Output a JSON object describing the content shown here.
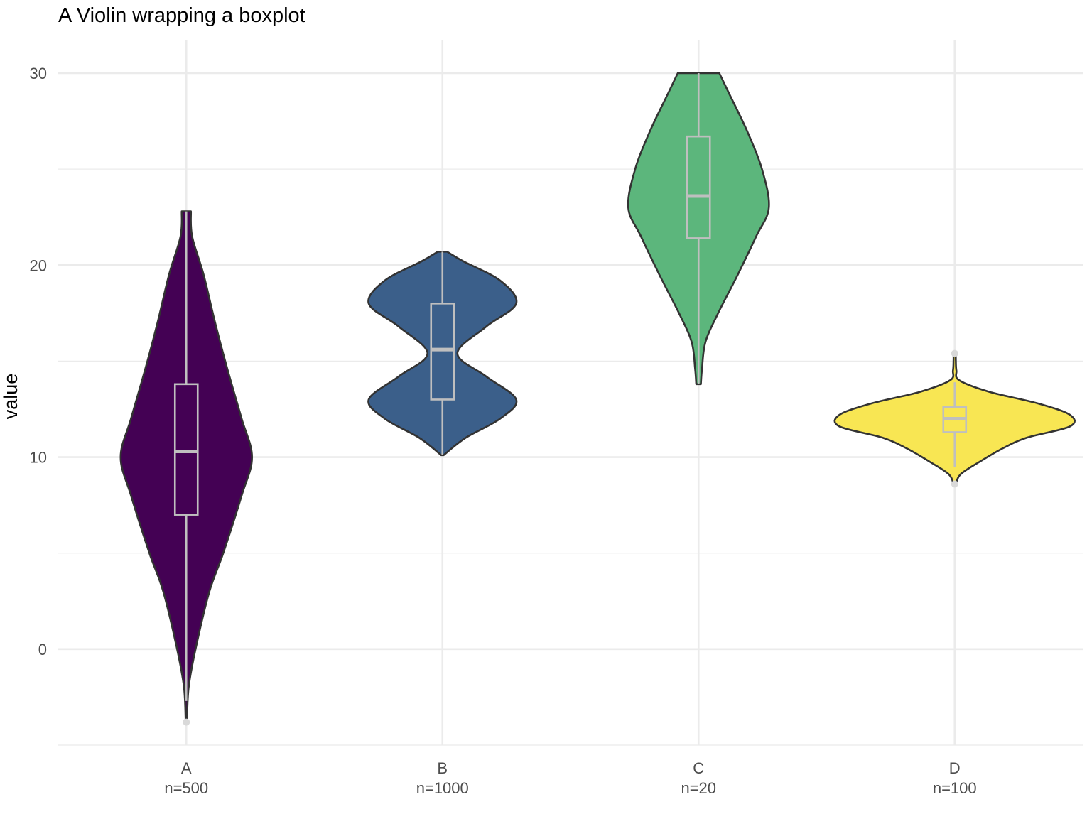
{
  "chart_data": {
    "type": "violin",
    "title": "A Violin wrapping a boxplot",
    "xlabel": "",
    "ylabel": "value",
    "ylim": [
      -5,
      31.7
    ],
    "y_ticks": [
      0,
      10,
      20,
      30
    ],
    "grid": true,
    "legend": "none",
    "categories": [
      "A",
      "B",
      "C",
      "D"
    ],
    "category_labels": [
      "n=500",
      "n=1000",
      "n=20",
      "n=100"
    ],
    "colors": [
      "#440154",
      "#3b5f8a",
      "#5cb67c",
      "#f8e653"
    ],
    "series": [
      {
        "category": "A",
        "n": 500,
        "box": {
          "q1": 7.0,
          "median": 10.3,
          "q3": 13.8,
          "whisker_low": -2.7,
          "whisker_high": 22.8
        },
        "outliers": [
          -3.8
        ],
        "violin_range": [
          -3.8,
          22.8
        ],
        "density": [
          [
            -3.8,
            0.005
          ],
          [
            -2.0,
            0.02
          ],
          [
            0,
            0.08
          ],
          [
            3.0,
            0.2
          ],
          [
            5.0,
            0.32
          ],
          [
            8.0,
            0.48
          ],
          [
            10.0,
            0.57
          ],
          [
            12.0,
            0.48
          ],
          [
            14.5,
            0.36
          ],
          [
            17.0,
            0.25
          ],
          [
            19.5,
            0.15
          ],
          [
            21.5,
            0.05
          ],
          [
            22.8,
            0.04
          ]
        ]
      },
      {
        "category": "B",
        "n": 1000,
        "box": {
          "q1": 13.0,
          "median": 15.6,
          "q3": 18.0,
          "whisker_low": 10.1,
          "whisker_high": 20.7
        },
        "outliers": [],
        "violin_range": [
          10.1,
          20.7
        ],
        "density": [
          [
            10.1,
            0.01
          ],
          [
            11.0,
            0.2
          ],
          [
            12.0,
            0.5
          ],
          [
            13.0,
            0.64
          ],
          [
            14.2,
            0.38
          ],
          [
            15.4,
            0.13
          ],
          [
            16.8,
            0.38
          ],
          [
            18.0,
            0.64
          ],
          [
            19.2,
            0.5
          ],
          [
            20.2,
            0.18
          ],
          [
            20.7,
            0.04
          ]
        ]
      },
      {
        "category": "C",
        "n": 20,
        "box": {
          "q1": 21.4,
          "median": 23.6,
          "q3": 26.7,
          "whisker_low": 13.8,
          "whisker_high": 30.0
        },
        "outliers": [],
        "violin_range": [
          13.8,
          30.0
        ],
        "density": [
          [
            13.8,
            0.02
          ],
          [
            14.6,
            0.03
          ],
          [
            16.0,
            0.06
          ],
          [
            17.5,
            0.17
          ],
          [
            19.5,
            0.34
          ],
          [
            21.5,
            0.5
          ],
          [
            23.0,
            0.61
          ],
          [
            25.0,
            0.55
          ],
          [
            27.0,
            0.42
          ],
          [
            29.0,
            0.26
          ],
          [
            30.0,
            0.18
          ]
        ]
      },
      {
        "category": "D",
        "n": 100,
        "box": {
          "q1": 11.3,
          "median": 12.0,
          "q3": 12.6,
          "whisker_low": 9.5,
          "whisker_high": 13.9
        },
        "outliers": [
          8.6,
          15.4
        ],
        "violin_range": [
          8.6,
          15.4
        ],
        "density": [
          [
            8.6,
            0.01
          ],
          [
            9.1,
            0.05
          ],
          [
            9.7,
            0.2
          ],
          [
            10.4,
            0.4
          ],
          [
            11.0,
            0.62
          ],
          [
            11.6,
            1.0
          ],
          [
            12.2,
            1.0
          ],
          [
            12.8,
            0.72
          ],
          [
            13.4,
            0.3
          ],
          [
            14.0,
            0.04
          ],
          [
            14.5,
            0.015
          ],
          [
            15.0,
            0.01
          ],
          [
            15.4,
            0.01
          ]
        ]
      }
    ]
  }
}
